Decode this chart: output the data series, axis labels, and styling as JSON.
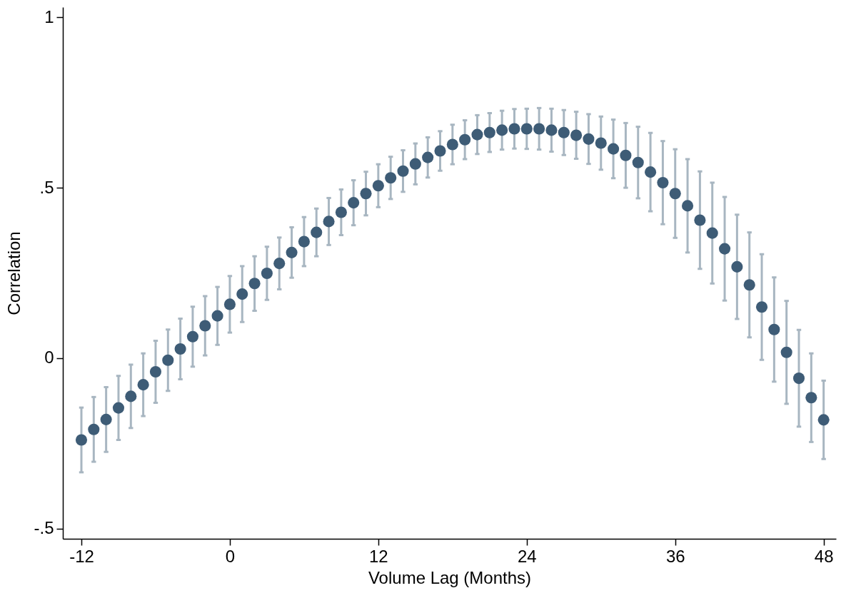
{
  "chart_data": {
    "type": "scatter",
    "xlabel": "Volume Lag (Months)",
    "ylabel": "Correlation",
    "marker": "circle",
    "x": [
      -12,
      -11,
      -10,
      -9,
      -8,
      -7,
      -6,
      -5,
      -4,
      -3,
      -2,
      -1,
      0,
      1,
      2,
      3,
      4,
      5,
      6,
      7,
      8,
      9,
      10,
      11,
      12,
      13,
      14,
      15,
      16,
      17,
      18,
      19,
      20,
      21,
      22,
      23,
      24,
      25,
      26,
      27,
      28,
      29,
      30,
      31,
      32,
      33,
      34,
      35,
      36,
      37,
      38,
      39,
      40,
      41,
      42,
      43,
      44,
      45,
      46,
      47,
      48
    ],
    "series": [
      {
        "color": "#3e5c76",
        "values": [
          -0.24,
          -0.209,
          -0.18,
          -0.146,
          -0.112,
          -0.078,
          -0.04,
          -0.006,
          0.027,
          0.063,
          0.095,
          0.124,
          0.158,
          0.188,
          0.219,
          0.249,
          0.278,
          0.31,
          0.342,
          0.369,
          0.401,
          0.428,
          0.456,
          0.483,
          0.506,
          0.529,
          0.549,
          0.57,
          0.589,
          0.608,
          0.627,
          0.641,
          0.656,
          0.662,
          0.669,
          0.673,
          0.673,
          0.673,
          0.669,
          0.662,
          0.654,
          0.643,
          0.631,
          0.614,
          0.595,
          0.574,
          0.546,
          0.515,
          0.483,
          0.447,
          0.405,
          0.367,
          0.321,
          0.268,
          0.215,
          0.15,
          0.084,
          0.017,
          -0.059,
          -0.116,
          -0.181
        ],
        "errors": [
          0.095,
          0.095,
          0.095,
          0.094,
          0.093,
          0.092,
          0.091,
          0.09,
          0.089,
          0.088,
          0.087,
          0.085,
          0.083,
          0.082,
          0.08,
          0.078,
          0.076,
          0.074,
          0.072,
          0.07,
          0.069,
          0.067,
          0.066,
          0.064,
          0.063,
          0.062,
          0.061,
          0.06,
          0.059,
          0.058,
          0.058,
          0.057,
          0.057,
          0.057,
          0.057,
          0.058,
          0.059,
          0.061,
          0.063,
          0.066,
          0.069,
          0.073,
          0.078,
          0.086,
          0.095,
          0.105,
          0.115,
          0.122,
          0.13,
          0.137,
          0.143,
          0.148,
          0.152,
          0.153,
          0.154,
          0.155,
          0.153,
          0.151,
          0.142,
          0.13,
          0.115
        ]
      }
    ],
    "xlim": [
      -13.5,
      49
    ],
    "xticks": [
      -12,
      0,
      12,
      24,
      36,
      48
    ],
    "ylim": [
      -0.53,
      1.03
    ],
    "yticks": [
      1,
      {
        "value": 0.5,
        "label": ".5"
      },
      0,
      {
        "value": -0.5,
        "label": "-.5"
      }
    ]
  }
}
